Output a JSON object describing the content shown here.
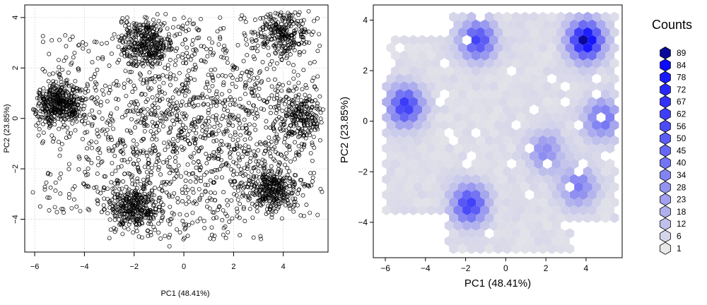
{
  "chart_data": [
    {
      "type": "scatter",
      "title": "",
      "xlabel": "PC1 (48.41%)",
      "ylabel": "PC2 (23.85%)",
      "xlim": [
        -6.4,
        5.8
      ],
      "ylim": [
        -5.3,
        4.5
      ],
      "xticks": [
        -6,
        -4,
        -2,
        0,
        2,
        4
      ],
      "yticks": [
        -4,
        -2,
        0,
        2,
        4
      ],
      "grid": true,
      "marker": "open-circle",
      "marker_color": "#000000",
      "clusters": [
        {
          "x": -5.0,
          "y": 0.6,
          "n": 420
        },
        {
          "x": -1.5,
          "y": 3.0,
          "n": 320
        },
        {
          "x": 4.0,
          "y": 3.4,
          "n": 240
        },
        {
          "x": -2.0,
          "y": -3.5,
          "n": 330
        },
        {
          "x": 4.8,
          "y": 0.0,
          "n": 220
        },
        {
          "x": 3.5,
          "y": -2.8,
          "n": 300
        },
        {
          "x": 0.5,
          "y": -0.5,
          "n": 900
        }
      ]
    },
    {
      "type": "hexbin",
      "title": "",
      "xlabel": "PC1 (48.41%)",
      "ylabel": "PC2 (23.85%)",
      "xlim": [
        -6.6,
        5.8
      ],
      "ylim": [
        -5.4,
        4.6
      ],
      "xticks": [
        -6,
        -4,
        -2,
        0,
        2,
        4
      ],
      "yticks": [
        -4,
        -2,
        0,
        2,
        4
      ],
      "legend_title": "Counts",
      "legend_levels": [
        "89",
        "84",
        "78",
        "72",
        "67",
        "62",
        "56",
        "50",
        "45",
        "40",
        "34",
        "28",
        "23",
        "18",
        "12",
        "6",
        "1"
      ],
      "colors": {
        "low": "#e8e8e8",
        "high": "#0000ff",
        "max": "#0a0a9a"
      },
      "clusters": [
        {
          "x": -5.0,
          "y": 0.6,
          "peak": 62
        },
        {
          "x": -1.4,
          "y": 3.2,
          "peak": 56
        },
        {
          "x": 4.0,
          "y": 3.2,
          "peak": 89
        },
        {
          "x": -1.8,
          "y": -3.3,
          "peak": 60
        },
        {
          "x": 4.8,
          "y": 0.1,
          "peak": 40
        },
        {
          "x": 3.6,
          "y": -2.6,
          "peak": 34
        },
        {
          "x": 2.0,
          "y": -1.2,
          "peak": 28
        }
      ]
    }
  ]
}
